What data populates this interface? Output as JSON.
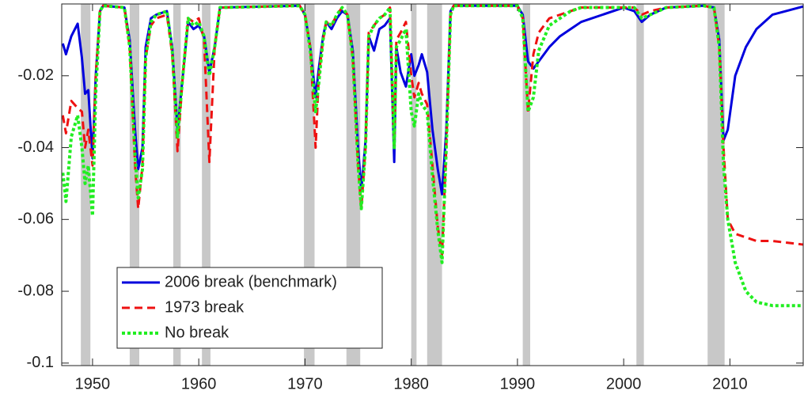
{
  "chart_data": {
    "type": "line",
    "xlim": [
      1947.1,
      2016.9
    ],
    "xticks": [
      1950,
      1960,
      1970,
      1980,
      1990,
      2000,
      2010
    ],
    "ylim": [
      -0.1007,
      0
    ],
    "yticks": [
      -0.1,
      -0.08,
      -0.06,
      -0.04,
      -0.02
    ],
    "legend": "lower left",
    "shaded_periods": [
      [
        1948.9,
        1949.8
      ],
      [
        1953.5,
        1954.4
      ],
      [
        1957.6,
        1958.3
      ],
      [
        1960.3,
        1961.1
      ],
      [
        1969.9,
        1970.9
      ],
      [
        1973.9,
        1975.2
      ],
      [
        1980.0,
        1980.5
      ],
      [
        1981.5,
        1982.9
      ],
      [
        1990.5,
        1991.2
      ],
      [
        2001.2,
        2001.9
      ],
      [
        2007.9,
        2009.5
      ]
    ],
    "shade_color": "#c8c8c8",
    "x": [
      1947.2,
      1947.5,
      1948,
      1948.6,
      1949,
      1949.3,
      1949.6,
      1950,
      1950.3,
      1950.7,
      1951,
      1953,
      1953.5,
      1954,
      1954.3,
      1954.7,
      1955,
      1955.5,
      1956,
      1957,
      1957.5,
      1958,
      1958.5,
      1959,
      1959.5,
      1960,
      1960.5,
      1961,
      1961.5,
      1962,
      1969.5,
      1970,
      1970.5,
      1971,
      1971.3,
      1971.7,
      1972,
      1972.5,
      1973,
      1973.5,
      1974,
      1974.5,
      1975,
      1975.3,
      1975.7,
      1976,
      1976.5,
      1977,
      1977.5,
      1978,
      1978.4,
      1978.6,
      1979,
      1979.5,
      1980,
      1980.3,
      1980.7,
      1981,
      1981.5,
      1982,
      1982.5,
      1982.9,
      1983.3,
      1983.7,
      1984,
      1990,
      1990.5,
      1991,
      1991.5,
      1992,
      1993,
      1994,
      1995,
      1996,
      1998,
      2000,
      2001,
      2001.7,
      2002.5,
      2004,
      2007.5,
      2008.5,
      2009,
      2009.4,
      2009.8,
      2010.5,
      2011.5,
      2012.5,
      2014,
      2016.9
    ],
    "series": [
      {
        "name": "2006 break (benchmark)",
        "color": "#0000dd",
        "dash": "solid",
        "values": [
          -0.011,
          -0.014,
          -0.009,
          -0.0055,
          -0.015,
          -0.025,
          -0.024,
          -0.043,
          -0.02,
          -0.002,
          -0.0005,
          -0.001,
          -0.01,
          -0.035,
          -0.046,
          -0.04,
          -0.012,
          -0.004,
          -0.003,
          -0.002,
          -0.012,
          -0.035,
          -0.02,
          -0.005,
          -0.007,
          -0.006,
          -0.009,
          -0.019,
          -0.012,
          -0.001,
          -0.0005,
          -0.003,
          -0.012,
          -0.026,
          -0.018,
          -0.009,
          -0.005,
          -0.007,
          -0.004,
          -0.002,
          -0.003,
          -0.013,
          -0.04,
          -0.052,
          -0.038,
          -0.009,
          -0.013,
          -0.007,
          -0.006,
          -0.004,
          -0.044,
          -0.012,
          -0.019,
          -0.023,
          -0.014,
          -0.02,
          -0.017,
          -0.014,
          -0.019,
          -0.035,
          -0.046,
          -0.053,
          -0.035,
          -0.002,
          -0.0005,
          -0.0005,
          -0.003,
          -0.016,
          -0.018,
          -0.016,
          -0.012,
          -0.009,
          -0.007,
          -0.005,
          -0.003,
          -0.001,
          -0.002,
          -0.005,
          -0.003,
          -0.001,
          -0.0005,
          -0.001,
          -0.01,
          -0.038,
          -0.035,
          -0.02,
          -0.012,
          -0.007,
          -0.003,
          -0.0007
        ]
      },
      {
        "name": "1973 break",
        "color": "#ee1111",
        "dash": "dashed",
        "values": [
          -0.031,
          -0.036,
          -0.027,
          -0.029,
          -0.03,
          -0.04,
          -0.035,
          -0.045,
          -0.02,
          -0.002,
          -0.0005,
          -0.001,
          -0.012,
          -0.045,
          -0.057,
          -0.045,
          -0.015,
          -0.006,
          -0.004,
          -0.003,
          -0.014,
          -0.041,
          -0.02,
          -0.004,
          -0.005,
          -0.004,
          -0.01,
          -0.044,
          -0.012,
          -0.001,
          -0.0005,
          -0.003,
          -0.012,
          -0.04,
          -0.02,
          -0.01,
          -0.005,
          -0.006,
          -0.003,
          -0.001,
          -0.003,
          -0.015,
          -0.045,
          -0.057,
          -0.04,
          -0.008,
          -0.006,
          -0.004,
          -0.003,
          -0.001,
          -0.04,
          -0.01,
          -0.008,
          -0.005,
          -0.02,
          -0.026,
          -0.022,
          -0.025,
          -0.028,
          -0.045,
          -0.062,
          -0.07,
          -0.04,
          -0.003,
          -0.0005,
          -0.0005,
          -0.004,
          -0.03,
          -0.014,
          -0.008,
          -0.004,
          -0.003,
          -0.002,
          -0.001,
          -0.001,
          -0.001,
          -0.001,
          -0.003,
          -0.002,
          -0.001,
          -0.0005,
          -0.001,
          -0.012,
          -0.04,
          -0.06,
          -0.064,
          -0.065,
          -0.066,
          -0.066,
          -0.067
        ]
      },
      {
        "name": "No break",
        "color": "#22ee22",
        "dash": "dotted",
        "values": [
          -0.047,
          -0.055,
          -0.037,
          -0.031,
          -0.04,
          -0.05,
          -0.045,
          -0.059,
          -0.025,
          -0.002,
          -0.0005,
          -0.001,
          -0.012,
          -0.042,
          -0.054,
          -0.046,
          -0.015,
          -0.005,
          -0.003,
          -0.002,
          -0.013,
          -0.037,
          -0.02,
          -0.004,
          -0.006,
          -0.005,
          -0.009,
          -0.02,
          -0.012,
          -0.001,
          -0.0005,
          -0.003,
          -0.013,
          -0.03,
          -0.022,
          -0.01,
          -0.005,
          -0.006,
          -0.003,
          -0.001,
          -0.003,
          -0.015,
          -0.045,
          -0.057,
          -0.04,
          -0.009,
          -0.006,
          -0.004,
          -0.003,
          -0.001,
          -0.04,
          -0.012,
          -0.01,
          -0.007,
          -0.03,
          -0.034,
          -0.025,
          -0.028,
          -0.03,
          -0.048,
          -0.063,
          -0.072,
          -0.04,
          -0.003,
          -0.0005,
          -0.0005,
          -0.004,
          -0.03,
          -0.026,
          -0.013,
          -0.006,
          -0.004,
          -0.002,
          -0.001,
          -0.001,
          -0.001,
          -0.001,
          -0.004,
          -0.003,
          -0.001,
          -0.0005,
          -0.001,
          -0.012,
          -0.045,
          -0.06,
          -0.072,
          -0.08,
          -0.083,
          -0.084,
          -0.084
        ]
      }
    ]
  }
}
